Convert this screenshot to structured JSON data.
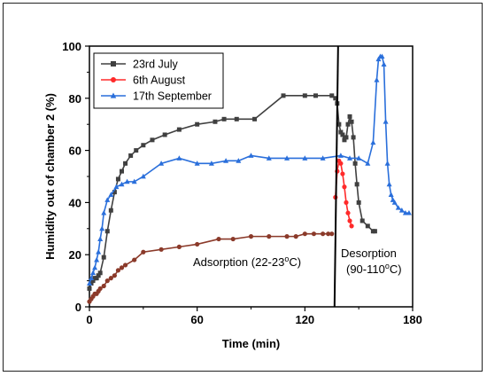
{
  "chart_data": {
    "type": "line",
    "xlabel": "Time (min)",
    "ylabel": "Humidity out of chamber 2 (%)",
    "xlim": [
      0,
      180
    ],
    "ylim": [
      0,
      100
    ],
    "xticks": [
      "0",
      "60",
      "120",
      "180"
    ],
    "yticks": [
      "0",
      "20",
      "40",
      "60",
      "80",
      "100"
    ],
    "legend_position": "top-left",
    "annotations": [
      {
        "id": "adsorption",
        "text": "Adsorption (22-23",
        "sup": "o",
        "tail": "C)"
      },
      {
        "id": "desorption1",
        "text": "Desorption",
        "sup": "",
        "tail": ""
      },
      {
        "id": "desorption2",
        "text": "(90-110",
        "sup": "o",
        "tail": "C)"
      }
    ],
    "divider": {
      "x_top": 138.5,
      "x_bottom": 136.5
    },
    "series": [
      {
        "name": "23rd July",
        "color": "#404040",
        "marker": "square",
        "x": [
          0,
          1,
          2,
          3,
          4,
          5,
          6,
          8,
          10,
          12,
          14,
          16,
          18,
          20,
          23,
          26,
          30,
          35,
          42,
          50,
          60,
          70,
          75,
          82,
          92,
          108,
          120,
          126,
          135,
          137,
          138,
          139,
          140,
          141,
          142,
          143,
          144,
          145,
          146,
          147,
          148,
          149,
          150,
          152,
          155,
          158,
          159
        ],
        "y": [
          7,
          9,
          10,
          11,
          11,
          12,
          13,
          19,
          29,
          37,
          44,
          49,
          52,
          55,
          58,
          60,
          62,
          64,
          66,
          68,
          70,
          71,
          72,
          72,
          72,
          81,
          81,
          81,
          81,
          80,
          78,
          70,
          67,
          66,
          64,
          65,
          70,
          73,
          71,
          65,
          55,
          47,
          40,
          33,
          31,
          29,
          29
        ]
      },
      {
        "name": "6th August",
        "color": "#ff2a2a",
        "marker": "circle",
        "x": [
          137,
          138,
          139,
          140,
          141,
          142,
          143,
          144,
          145,
          146
        ],
        "y": [
          42,
          52,
          56,
          55,
          51,
          46,
          40,
          36,
          33,
          31
        ]
      },
      {
        "name": "17th September",
        "color": "#2a6fdb",
        "marker": "triangle",
        "x": [
          0,
          1,
          2,
          3,
          4,
          5,
          6,
          7,
          8,
          10,
          12,
          15,
          18,
          21,
          25,
          30,
          40,
          50,
          60,
          68,
          76,
          83,
          90,
          100,
          110,
          120,
          130,
          140,
          145,
          150,
          155,
          158,
          160,
          161,
          162,
          163,
          164,
          165,
          166,
          167,
          168,
          169,
          170,
          172,
          174,
          176,
          178
        ],
        "y": [
          9,
          11,
          13,
          15,
          18,
          21,
          26,
          30,
          36,
          41,
          43,
          46,
          47,
          48,
          48,
          50,
          55,
          57,
          55,
          55,
          56,
          56,
          58,
          57,
          57,
          57,
          57,
          58,
          57,
          57,
          55,
          63,
          87,
          95,
          96,
          96,
          93,
          71,
          55,
          47,
          43,
          41,
          40,
          38,
          37,
          36,
          36
        ]
      },
      {
        "name": "",
        "color": "#8b3a2a",
        "marker": "circle",
        "x": [
          0,
          1,
          2,
          3,
          4,
          5,
          6,
          8,
          10,
          12,
          14,
          16,
          18,
          20,
          25,
          30,
          40,
          50,
          60,
          72,
          80,
          90,
          100,
          110,
          115,
          120,
          125,
          130,
          133,
          135
        ],
        "y": [
          2,
          3,
          4,
          5,
          5,
          6,
          7,
          8,
          10,
          11,
          12,
          14,
          15,
          16,
          18,
          21,
          22,
          23,
          24,
          26,
          26,
          27,
          27,
          27,
          27,
          28,
          28,
          28,
          28,
          28
        ]
      }
    ]
  }
}
